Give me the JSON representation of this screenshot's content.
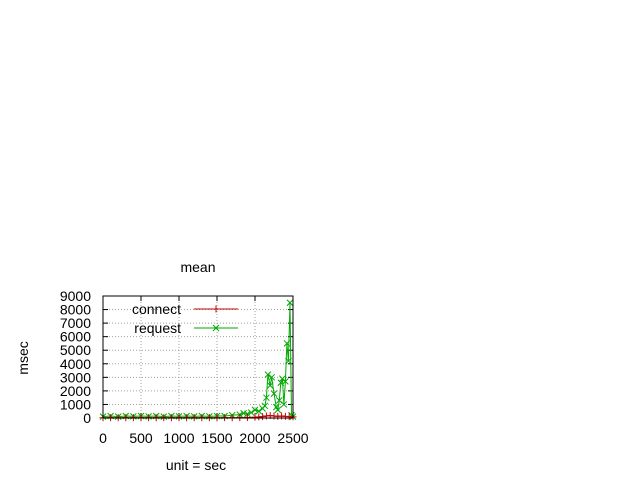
{
  "chart_data": {
    "type": "line",
    "title": "mean",
    "xlabel": "unit = sec",
    "ylabel": "msec",
    "xlim": [
      0,
      2500
    ],
    "ylim": [
      0,
      9000
    ],
    "xticks": [
      "0",
      "500",
      "1000",
      "1500",
      "2000",
      "2500"
    ],
    "yticks": [
      "0",
      "1000",
      "2000",
      "3000",
      "4000",
      "5000",
      "6000",
      "7000",
      "8000",
      "9000"
    ],
    "grid": true,
    "legend_position": "top-left",
    "series": [
      {
        "name": "connect",
        "color": "#cc0000",
        "marker": "plus",
        "x": [
          0,
          100,
          200,
          300,
          400,
          500,
          600,
          700,
          800,
          900,
          1000,
          1100,
          1200,
          1300,
          1400,
          1500,
          1600,
          1700,
          1800,
          1900,
          2000,
          2050,
          2100,
          2150,
          2200,
          2250,
          2300,
          2350,
          2400,
          2450,
          2500
        ],
        "values": [
          20,
          20,
          25,
          20,
          25,
          20,
          25,
          20,
          25,
          20,
          25,
          20,
          25,
          20,
          25,
          20,
          25,
          20,
          30,
          40,
          60,
          80,
          100,
          150,
          180,
          150,
          120,
          150,
          120,
          100,
          80
        ]
      },
      {
        "name": "request",
        "color": "#00aa00",
        "marker": "cross",
        "x": [
          0,
          100,
          200,
          300,
          400,
          500,
          600,
          700,
          800,
          900,
          1000,
          1100,
          1200,
          1300,
          1400,
          1500,
          1600,
          1700,
          1800,
          1850,
          1900,
          1950,
          2000,
          2050,
          2100,
          2130,
          2150,
          2170,
          2200,
          2220,
          2250,
          2280,
          2300,
          2320,
          2340,
          2360,
          2380,
          2400,
          2420,
          2440,
          2460,
          2480,
          2500
        ],
        "values": [
          100,
          150,
          100,
          150,
          120,
          150,
          120,
          150,
          100,
          150,
          120,
          150,
          120,
          150,
          120,
          150,
          150,
          200,
          250,
          350,
          300,
          400,
          600,
          500,
          700,
          900,
          1500,
          3200,
          2400,
          3000,
          1800,
          800,
          600,
          1300,
          2600,
          2900,
          1000,
          2700,
          5500,
          4200,
          8500,
          200,
          100
        ]
      }
    ]
  }
}
